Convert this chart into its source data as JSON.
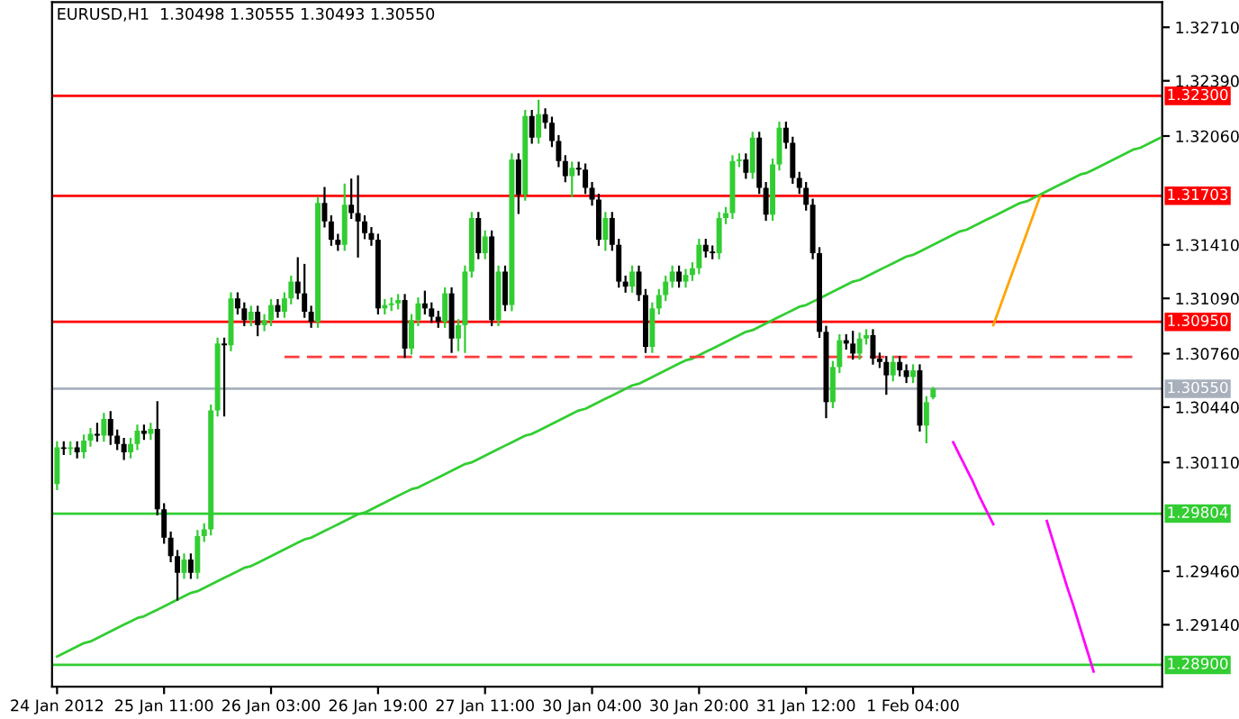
{
  "chart_data": {
    "type": "candlestick",
    "title": "EURUSD,H1  1.30498 1.30555 1.30493 1.30550",
    "categories": [
      "24 Jan 2012",
      null,
      null,
      null,
      null,
      null,
      null,
      null,
      null,
      null,
      null,
      null,
      null,
      null,
      null,
      null,
      "25 Jan 11:00",
      null,
      null,
      null,
      null,
      null,
      null,
      null,
      null,
      null,
      null,
      null,
      null,
      null,
      null,
      null,
      "26 Jan 03:00",
      null,
      null,
      null,
      null,
      null,
      null,
      null,
      null,
      null,
      null,
      null,
      null,
      null,
      null,
      null,
      "26 Jan 19:00",
      null,
      null,
      null,
      null,
      null,
      null,
      null,
      null,
      null,
      null,
      null,
      null,
      null,
      null,
      null,
      "27 Jan 11:00",
      null,
      null,
      null,
      null,
      null,
      null,
      null,
      null,
      null,
      null,
      null,
      null,
      null,
      null,
      null,
      "30 Jan 04:00",
      null,
      null,
      null,
      null,
      null,
      null,
      null,
      null,
      null,
      null,
      null,
      null,
      null,
      null,
      null,
      "30 Jan 20:00",
      null,
      null,
      null,
      null,
      null,
      null,
      null,
      null,
      null,
      null,
      null,
      null,
      null,
      null,
      null,
      "31 Jan 12:00",
      null,
      null,
      null,
      null,
      null,
      null,
      null,
      null,
      null,
      null,
      null,
      null,
      null,
      null,
      null,
      "1 Feb 04:00",
      null,
      null,
      null,
      null,
      null,
      null,
      null,
      null,
      null,
      null,
      null,
      null,
      null,
      null,
      null,
      null,
      null,
      null,
      null,
      null,
      null,
      null,
      null,
      null,
      null,
      null,
      null,
      null,
      null,
      null,
      null,
      null,
      null,
      null,
      null,
      null,
      null
    ],
    "ylim": [
      1.2877,
      1.3286
    ],
    "yticks": [
      {
        "value": 1.3271,
        "label": "1.32710"
      },
      {
        "value": 1.3239,
        "label": "1.32390"
      },
      {
        "value": 1.3206,
        "label": "1.32060"
      },
      {
        "value": 1.3141,
        "label": "1.31410"
      },
      {
        "value": 1.3109,
        "label": "1.31090"
      },
      {
        "value": 1.3076,
        "label": "1.30760"
      },
      {
        "value": 1.3044,
        "label": "1.30440"
      },
      {
        "value": 1.3011,
        "label": "1.30110"
      },
      {
        "value": 1.2946,
        "label": "1.29460"
      },
      {
        "value": 1.2914,
        "label": "1.29140"
      }
    ],
    "ohlc": [
      [
        1.2998,
        1.3023,
        1.2995,
        1.302
      ],
      [
        1.302,
        1.3023,
        1.3016,
        1.3019
      ],
      [
        1.3019,
        1.3023,
        1.3016,
        1.302
      ],
      [
        1.302,
        1.3023,
        1.3014,
        1.3017
      ],
      [
        1.3017,
        1.3027,
        1.3014,
        1.3024
      ],
      [
        1.3024,
        1.3031,
        1.3021,
        1.3028
      ],
      [
        1.3028,
        1.3034,
        1.3024,
        1.3027
      ],
      [
        1.3027,
        1.304,
        1.3024,
        1.3037
      ],
      [
        1.3037,
        1.3041,
        1.3022,
        1.3027
      ],
      [
        1.3027,
        1.303,
        1.3019,
        1.3022
      ],
      [
        1.3022,
        1.3025,
        1.3013,
        1.3017
      ],
      [
        1.3017,
        1.3025,
        1.3014,
        1.3022
      ],
      [
        1.3022,
        1.3033,
        1.3019,
        1.303
      ],
      [
        1.303,
        1.3033,
        1.3025,
        1.3028
      ],
      [
        1.3028,
        1.3034,
        1.3025,
        1.3031
      ],
      [
        1.3031,
        1.3047,
        1.298,
        1.2983
      ],
      [
        1.2983,
        1.2986,
        1.2963,
        1.2966
      ],
      [
        1.2966,
        1.2969,
        1.2952,
        1.2955
      ],
      [
        1.2955,
        1.2958,
        1.2929,
        1.2945
      ],
      [
        1.2945,
        1.2956,
        1.2942,
        1.2953
      ],
      [
        1.2953,
        1.2956,
        1.2942,
        1.2945
      ],
      [
        1.2945,
        1.297,
        1.2942,
        1.2967
      ],
      [
        1.2967,
        1.2974,
        1.2964,
        1.2971
      ],
      [
        1.2971,
        1.3045,
        1.2968,
        1.3042
      ],
      [
        1.3042,
        1.3085,
        1.3039,
        1.3082
      ],
      [
        1.3082,
        1.3085,
        1.3039,
        1.3081
      ],
      [
        1.3081,
        1.3112,
        1.3078,
        1.3109
      ],
      [
        1.3109,
        1.3112,
        1.31,
        1.3103
      ],
      [
        1.3103,
        1.3106,
        1.3093,
        1.3096
      ],
      [
        1.3096,
        1.3104,
        1.3093,
        1.3101
      ],
      [
        1.3101,
        1.3104,
        1.3087,
        1.3093
      ],
      [
        1.3093,
        1.3099,
        1.309,
        1.3096
      ],
      [
        1.3096,
        1.3108,
        1.3093,
        1.3105
      ],
      [
        1.3105,
        1.3108,
        1.3098,
        1.3101
      ],
      [
        1.3101,
        1.3112,
        1.3098,
        1.3109
      ],
      [
        1.3109,
        1.3122,
        1.3106,
        1.3119
      ],
      [
        1.3119,
        1.3133,
        1.3109,
        1.3112
      ],
      [
        1.3112,
        1.3129,
        1.3098,
        1.3101
      ],
      [
        1.3101,
        1.3104,
        1.3092,
        1.3095
      ],
      [
        1.3095,
        1.3169,
        1.3092,
        1.3166
      ],
      [
        1.3166,
        1.3175,
        1.3152,
        1.3155
      ],
      [
        1.3155,
        1.3158,
        1.3141,
        1.3144
      ],
      [
        1.3144,
        1.3147,
        1.3138,
        1.3141
      ],
      [
        1.3141,
        1.3177,
        1.3138,
        1.3165
      ],
      [
        1.3165,
        1.318,
        1.3157,
        1.316
      ],
      [
        1.316,
        1.3182,
        1.3134,
        1.3155
      ],
      [
        1.3155,
        1.3158,
        1.3145,
        1.3148
      ],
      [
        1.3148,
        1.3151,
        1.3141,
        1.3144
      ],
      [
        1.3144,
        1.3147,
        1.31,
        1.3103
      ],
      [
        1.3103,
        1.3108,
        1.31,
        1.3105
      ],
      [
        1.3105,
        1.3109,
        1.3102,
        1.3106
      ],
      [
        1.3106,
        1.3111,
        1.3103,
        1.3108
      ],
      [
        1.3108,
        1.3111,
        1.3074,
        1.3079
      ],
      [
        1.3079,
        1.3099,
        1.3076,
        1.3096
      ],
      [
        1.3096,
        1.3109,
        1.3093,
        1.3106
      ],
      [
        1.3106,
        1.3113,
        1.31,
        1.3103
      ],
      [
        1.3103,
        1.3106,
        1.3095,
        1.3098
      ],
      [
        1.3098,
        1.3101,
        1.3092,
        1.3095
      ],
      [
        1.3095,
        1.3115,
        1.3092,
        1.3112
      ],
      [
        1.3112,
        1.3115,
        1.3077,
        1.3085
      ],
      [
        1.3085,
        1.3096,
        1.3078,
        1.3093
      ],
      [
        1.3093,
        1.3128,
        1.3077,
        1.3125
      ],
      [
        1.3125,
        1.316,
        1.3122,
        1.3157
      ],
      [
        1.3157,
        1.316,
        1.3133,
        1.3136
      ],
      [
        1.3136,
        1.3149,
        1.3133,
        1.3146
      ],
      [
        1.3146,
        1.3149,
        1.3093,
        1.3096
      ],
      [
        1.3096,
        1.3128,
        1.3093,
        1.3125
      ],
      [
        1.3125,
        1.3128,
        1.3102,
        1.3105
      ],
      [
        1.3105,
        1.3195,
        1.3102,
        1.3192
      ],
      [
        1.3192,
        1.3195,
        1.316,
        1.3171
      ],
      [
        1.3171,
        1.3221,
        1.3168,
        1.3218
      ],
      [
        1.3218,
        1.3221,
        1.3202,
        1.3205
      ],
      [
        1.3205,
        1.3227,
        1.3202,
        1.3219
      ],
      [
        1.3219,
        1.3222,
        1.3211,
        1.3214
      ],
      [
        1.3214,
        1.3217,
        1.32,
        1.3203
      ],
      [
        1.3203,
        1.3206,
        1.3188,
        1.3191
      ],
      [
        1.3191,
        1.3194,
        1.3179,
        1.3182
      ],
      [
        1.3182,
        1.319,
        1.317,
        1.3187
      ],
      [
        1.3187,
        1.319,
        1.3183,
        1.3186
      ],
      [
        1.3186,
        1.3189,
        1.3172,
        1.3175
      ],
      [
        1.3175,
        1.3178,
        1.3165,
        1.3168
      ],
      [
        1.3168,
        1.3171,
        1.3141,
        1.3144
      ],
      [
        1.3144,
        1.316,
        1.3138,
        1.3157
      ],
      [
        1.3157,
        1.316,
        1.3138,
        1.3141
      ],
      [
        1.3141,
        1.3144,
        1.3116,
        1.3119
      ],
      [
        1.3119,
        1.3122,
        1.3113,
        1.3116
      ],
      [
        1.3116,
        1.3128,
        1.3113,
        1.3125
      ],
      [
        1.3125,
        1.3128,
        1.3108,
        1.3111
      ],
      [
        1.3111,
        1.3114,
        1.3077,
        1.308
      ],
      [
        1.308,
        1.3106,
        1.3077,
        1.3103
      ],
      [
        1.3103,
        1.3114,
        1.31,
        1.3111
      ],
      [
        1.3111,
        1.3122,
        1.3108,
        1.3119
      ],
      [
        1.3119,
        1.3128,
        1.3116,
        1.3125
      ],
      [
        1.3125,
        1.3128,
        1.3116,
        1.3119
      ],
      [
        1.3119,
        1.3126,
        1.3116,
        1.3123
      ],
      [
        1.3123,
        1.313,
        1.312,
        1.3127
      ],
      [
        1.3127,
        1.3144,
        1.3124,
        1.3141
      ],
      [
        1.3141,
        1.3144,
        1.3134,
        1.3137
      ],
      [
        1.3137,
        1.314,
        1.3133,
        1.3136
      ],
      [
        1.3136,
        1.316,
        1.3133,
        1.3157
      ],
      [
        1.3157,
        1.3163,
        1.3154,
        1.316
      ],
      [
        1.316,
        1.3194,
        1.3157,
        1.3191
      ],
      [
        1.3191,
        1.3195,
        1.3188,
        1.3192
      ],
      [
        1.3192,
        1.3195,
        1.3181,
        1.3184
      ],
      [
        1.3184,
        1.3208,
        1.3181,
        1.3205
      ],
      [
        1.3205,
        1.3208,
        1.3172,
        1.3175
      ],
      [
        1.3175,
        1.3178,
        1.3156,
        1.3159
      ],
      [
        1.3159,
        1.3192,
        1.3156,
        1.3189
      ],
      [
        1.3189,
        1.3214,
        1.3186,
        1.3211
      ],
      [
        1.3211,
        1.3214,
        1.3199,
        1.3202
      ],
      [
        1.3202,
        1.3205,
        1.3178,
        1.3181
      ],
      [
        1.3181,
        1.3184,
        1.3172,
        1.3175
      ],
      [
        1.3175,
        1.3178,
        1.3162,
        1.3165
      ],
      [
        1.3165,
        1.3168,
        1.3133,
        1.3136
      ],
      [
        1.3136,
        1.3139,
        1.3086,
        1.3089
      ],
      [
        1.3089,
        1.3092,
        1.3038,
        1.3047
      ],
      [
        1.3047,
        1.3071,
        1.3044,
        1.3068
      ],
      [
        1.3068,
        1.3087,
        1.3065,
        1.3084
      ],
      [
        1.3084,
        1.3087,
        1.3079,
        1.3082
      ],
      [
        1.3082,
        1.3089,
        1.3073,
        1.3076
      ],
      [
        1.3076,
        1.3088,
        1.3073,
        1.3085
      ],
      [
        1.3085,
        1.309,
        1.3082,
        1.3087
      ],
      [
        1.3087,
        1.309,
        1.307,
        1.3073
      ],
      [
        1.3073,
        1.3076,
        1.3068,
        1.3071
      ],
      [
        1.3071,
        1.3074,
        1.3052,
        1.3063
      ],
      [
        1.3063,
        1.3074,
        1.306,
        1.3071
      ],
      [
        1.3071,
        1.3074,
        1.3063,
        1.3066
      ],
      [
        1.3066,
        1.3069,
        1.3059,
        1.3062
      ],
      [
        1.3062,
        1.3069,
        1.3059,
        1.3066
      ],
      [
        1.3066,
        1.3069,
        1.303,
        1.3033
      ],
      [
        1.3033,
        1.305,
        1.3023,
        1.3047
      ],
      [
        1.30498,
        1.30555,
        1.30493,
        1.3055
      ],
      null,
      null,
      null,
      null,
      null,
      null,
      null,
      null,
      null,
      null,
      null,
      null,
      null,
      null,
      null,
      null,
      null,
      null,
      null,
      null,
      null,
      null,
      null,
      null,
      null,
      null,
      null,
      null,
      null,
      null,
      null,
      null,
      null,
      null
    ],
    "colors": [
      "#32cd32",
      "#000000",
      "#32cd32",
      "#000000",
      "#32cd32",
      "#32cd32",
      "#000000",
      "#32cd32",
      "#000000",
      "#000000",
      "#000000",
      "#32cd32",
      "#32cd32",
      "#000000",
      "#32cd32",
      "#000000",
      "#000000",
      "#000000",
      "#000000",
      "#32cd32",
      "#000000",
      "#32cd32",
      "#32cd32",
      "#32cd32",
      "#32cd32",
      "#000000",
      "#32cd32",
      "#000000",
      "#000000",
      "#32cd32",
      "#000000",
      "#32cd32",
      "#32cd32",
      "#000000",
      "#32cd32",
      "#32cd32",
      "#000000",
      "#000000",
      "#000000",
      "#32cd32",
      "#000000",
      "#000000",
      "#000000",
      "#32cd32",
      "#000000",
      "#000000",
      "#000000",
      "#000000",
      "#000000",
      "#32cd32",
      "#32cd32",
      "#32cd32",
      "#000000",
      "#32cd32",
      "#32cd32",
      "#000000",
      "#000000",
      "#000000",
      "#32cd32",
      "#000000",
      "#32cd32",
      "#32cd32",
      "#32cd32",
      "#000000",
      "#32cd32",
      "#000000",
      "#32cd32",
      "#000000",
      "#32cd32",
      "#000000",
      "#32cd32",
      "#000000",
      "#32cd32",
      "#000000",
      "#000000",
      "#000000",
      "#000000",
      "#32cd32",
      "#000000",
      "#000000",
      "#000000",
      "#000000",
      "#32cd32",
      "#000000",
      "#000000",
      "#000000",
      "#32cd32",
      "#000000",
      "#000000",
      "#32cd32",
      "#32cd32",
      "#32cd32",
      "#32cd32",
      "#000000",
      "#32cd32",
      "#32cd32",
      "#32cd32",
      "#000000",
      "#000000",
      "#32cd32",
      "#32cd32",
      "#32cd32",
      "#32cd32",
      "#000000",
      "#32cd32",
      "#000000",
      "#000000",
      "#32cd32",
      "#32cd32",
      "#000000",
      "#000000",
      "#000000",
      "#000000",
      "#000000",
      "#000000",
      "#000000",
      "#32cd32",
      "#32cd32",
      "#000000",
      "#000000",
      "#32cd32",
      "#32cd32",
      "#000000",
      "#000000",
      "#000000",
      "#32cd32",
      "#000000",
      "#000000",
      "#32cd32",
      "#000000",
      "#32cd32",
      "#32cd32",
      null,
      null,
      null,
      null,
      null,
      null,
      null,
      null,
      null,
      null,
      null,
      null,
      null,
      null,
      null,
      null,
      null,
      null,
      null,
      null,
      null,
      null,
      null,
      null,
      null,
      null,
      null,
      null,
      null,
      null,
      null,
      null,
      null,
      null
    ],
    "series": [
      {
        "type": "line",
        "color": "#32cd32",
        "values": [
          1.2895,
          1.2897,
          1.2899,
          1.2901,
          1.2903,
          1.2904,
          1.2906,
          1.2908,
          1.291,
          1.2912,
          1.2914,
          1.2916,
          1.2918,
          1.2919,
          1.2921,
          1.2923,
          1.2925,
          1.2927,
          1.2929,
          1.2931,
          1.2933,
          1.2934,
          1.2936,
          1.2938,
          1.294,
          1.2942,
          1.2944,
          1.2946,
          1.2948,
          1.2949,
          1.2951,
          1.2953,
          1.2955,
          1.2957,
          1.2959,
          1.2961,
          1.2963,
          1.2965,
          1.2966,
          1.2968,
          1.297,
          1.2972,
          1.2974,
          1.2976,
          1.2978,
          1.298,
          1.2981,
          1.2983,
          1.2985,
          1.2987,
          1.2989,
          1.2991,
          1.2993,
          1.2995,
          1.2996,
          1.2998,
          1.3,
          1.3002,
          1.3004,
          1.3006,
          1.3008,
          1.301,
          1.3011,
          1.3013,
          1.3015,
          1.3017,
          1.3019,
          1.3021,
          1.3023,
          1.3025,
          1.3027,
          1.3028,
          1.303,
          1.3032,
          1.3034,
          1.3036,
          1.3038,
          1.304,
          1.3042,
          1.3043,
          1.3045,
          1.3047,
          1.3049,
          1.3051,
          1.3053,
          1.3055,
          1.3057,
          1.3058,
          1.306,
          1.3062,
          1.3064,
          1.3066,
          1.3068,
          1.307,
          1.3072,
          1.3073,
          1.3075,
          1.3077,
          1.3079,
          1.3081,
          1.3083,
          1.3085,
          1.3087,
          1.3089,
          1.309,
          1.3092,
          1.3094,
          1.3096,
          1.3098,
          1.31,
          1.3102,
          1.3104,
          1.3105,
          1.3107,
          1.3109,
          1.3111,
          1.3113,
          1.3115,
          1.3117,
          1.3119,
          1.312,
          1.3122,
          1.3124,
          1.3126,
          1.3128,
          1.313,
          1.3132,
          1.3134,
          1.3135,
          1.3137,
          1.3139,
          1.3141,
          1.3143,
          1.3145,
          1.3147,
          1.3149,
          1.315,
          1.3152,
          1.3154,
          1.3156,
          1.3158,
          1.316,
          1.3162,
          1.3164,
          1.3166,
          1.3167,
          1.3169,
          1.3171,
          1.3173,
          1.3175,
          1.3177,
          1.3179,
          1.3181,
          1.3183,
          1.3184,
          1.3186,
          1.3188,
          1.319,
          1.3192,
          1.3194,
          1.3196,
          1.3198,
          1.3199,
          1.3201,
          1.3203,
          1.3205
        ]
      },
      {
        "type": "line",
        "color": "#ff3c3c",
        "line_style": "dashed",
        "values": [
          null,
          null,
          null,
          null,
          null,
          null,
          null,
          null,
          null,
          null,
          null,
          null,
          null,
          null,
          null,
          null,
          null,
          null,
          null,
          null,
          null,
          null,
          null,
          null,
          null,
          null,
          null,
          null,
          null,
          null,
          null,
          null,
          null,
          null,
          1.3074,
          1.3074,
          1.3074,
          1.3074,
          1.3074,
          1.3074,
          1.3074,
          1.3074,
          1.3074,
          1.3074,
          1.3074,
          1.3074,
          1.3074,
          1.3074,
          1.3074,
          1.3074,
          1.3074,
          1.3074,
          1.3074,
          1.3074,
          1.3074,
          1.3074,
          1.3074,
          1.3074,
          1.3074,
          1.3074,
          1.3074,
          1.3074,
          1.3074,
          1.3074,
          1.3074,
          1.3074,
          1.3074,
          1.3074,
          1.3074,
          1.3074,
          1.3074,
          1.3074,
          1.3074,
          1.3074,
          1.3074,
          1.3074,
          1.3074,
          1.3074,
          1.3074,
          1.3074,
          1.3074,
          1.3074,
          1.3074,
          1.3074,
          1.3074,
          1.3074,
          1.3074,
          1.3074,
          1.3074,
          1.3074,
          1.3074,
          1.3074,
          1.3074,
          1.3074,
          1.3074,
          1.3074,
          1.3074,
          1.3074,
          1.3074,
          1.3074,
          1.3074,
          1.3074,
          1.3074,
          1.3074,
          1.3074,
          1.3074,
          1.3074,
          1.3074,
          1.3074,
          1.3074,
          1.3074,
          1.3074,
          1.3074,
          1.3074,
          1.3074,
          1.3074,
          1.3074,
          1.3074,
          1.3074,
          1.3074,
          1.3074,
          1.3074,
          1.3074,
          1.3074,
          1.3074,
          1.3074,
          1.3074,
          1.3074,
          1.3074,
          1.3074,
          1.3074,
          1.3074,
          1.3074,
          1.3074,
          1.3074,
          1.3074,
          1.3074,
          1.3074,
          1.3074,
          1.3074,
          1.3074,
          1.3074,
          1.3074,
          1.3074,
          1.3074,
          1.3074,
          1.3074,
          1.3074,
          1.3074,
          1.3074,
          1.3074,
          1.3074,
          1.3074,
          1.3074,
          1.3074,
          1.3074,
          1.3074,
          1.3074,
          1.3074,
          1.3074,
          1.3074,
          1.3074,
          null,
          null,
          null,
          null
        ]
      },
      {
        "type": "line",
        "color": "#ffa500",
        "values": [
          null,
          null,
          null,
          null,
          null,
          null,
          null,
          null,
          null,
          null,
          null,
          null,
          null,
          null,
          null,
          null,
          null,
          null,
          null,
          null,
          null,
          null,
          null,
          null,
          null,
          null,
          null,
          null,
          null,
          null,
          null,
          null,
          null,
          null,
          null,
          null,
          null,
          null,
          null,
          null,
          null,
          null,
          null,
          null,
          null,
          null,
          null,
          null,
          null,
          null,
          null,
          null,
          null,
          null,
          null,
          null,
          null,
          null,
          null,
          null,
          null,
          null,
          null,
          null,
          null,
          null,
          null,
          null,
          null,
          null,
          null,
          null,
          null,
          null,
          null,
          null,
          null,
          null,
          null,
          null,
          null,
          null,
          null,
          null,
          null,
          null,
          null,
          null,
          null,
          null,
          null,
          null,
          null,
          null,
          null,
          null,
          null,
          null,
          null,
          null,
          null,
          null,
          null,
          null,
          null,
          null,
          null,
          null,
          null,
          null,
          null,
          null,
          null,
          null,
          null,
          null,
          null,
          null,
          null,
          null,
          null,
          null,
          null,
          null,
          null,
          null,
          null,
          null,
          null,
          null,
          null,
          null,
          null,
          null,
          null,
          null,
          null,
          null,
          null,
          null,
          1.3093,
          1.3104,
          1.3115,
          1.3126,
          1.3137,
          1.3148,
          1.3159,
          1.317,
          null,
          null,
          null,
          null,
          null,
          null,
          null,
          null,
          null,
          null,
          null,
          null,
          null,
          null,
          null,
          null,
          null,
          null
        ]
      },
      {
        "type": "line",
        "color": "#ff00ff",
        "values": [
          null,
          null,
          null,
          null,
          null,
          null,
          null,
          null,
          null,
          null,
          null,
          null,
          null,
          null,
          null,
          null,
          null,
          null,
          null,
          null,
          null,
          null,
          null,
          null,
          null,
          null,
          null,
          null,
          null,
          null,
          null,
          null,
          null,
          null,
          null,
          null,
          null,
          null,
          null,
          null,
          null,
          null,
          null,
          null,
          null,
          null,
          null,
          null,
          null,
          null,
          null,
          null,
          null,
          null,
          null,
          null,
          null,
          null,
          null,
          null,
          null,
          null,
          null,
          null,
          null,
          null,
          null,
          null,
          null,
          null,
          null,
          null,
          null,
          null,
          null,
          null,
          null,
          null,
          null,
          null,
          null,
          null,
          null,
          null,
          null,
          null,
          null,
          null,
          null,
          null,
          null,
          null,
          null,
          null,
          null,
          null,
          null,
          null,
          null,
          null,
          null,
          null,
          null,
          null,
          null,
          null,
          null,
          null,
          null,
          null,
          null,
          null,
          null,
          null,
          null,
          null,
          null,
          null,
          null,
          null,
          null,
          null,
          null,
          null,
          null,
          null,
          null,
          null,
          null,
          null,
          null,
          null,
          null,
          null,
          1.3023,
          1.3015,
          1.3007,
          1.2999,
          1.299,
          1.2982,
          1.2974,
          null,
          null,
          null,
          null,
          null,
          null,
          null,
          null,
          null,
          null,
          null,
          null,
          null,
          null,
          null,
          null,
          null,
          null,
          null,
          null,
          null,
          null,
          null,
          null,
          null
        ]
      },
      {
        "type": "line",
        "color": "#ff00ff",
        "values": [
          null,
          null,
          null,
          null,
          null,
          null,
          null,
          null,
          null,
          null,
          null,
          null,
          null,
          null,
          null,
          null,
          null,
          null,
          null,
          null,
          null,
          null,
          null,
          null,
          null,
          null,
          null,
          null,
          null,
          null,
          null,
          null,
          null,
          null,
          null,
          null,
          null,
          null,
          null,
          null,
          null,
          null,
          null,
          null,
          null,
          null,
          null,
          null,
          null,
          null,
          null,
          null,
          null,
          null,
          null,
          null,
          null,
          null,
          null,
          null,
          null,
          null,
          null,
          null,
          null,
          null,
          null,
          null,
          null,
          null,
          null,
          null,
          null,
          null,
          null,
          null,
          null,
          null,
          null,
          null,
          null,
          null,
          null,
          null,
          null,
          null,
          null,
          null,
          null,
          null,
          null,
          null,
          null,
          null,
          null,
          null,
          null,
          null,
          null,
          null,
          null,
          null,
          null,
          null,
          null,
          null,
          null,
          null,
          null,
          null,
          null,
          null,
          null,
          null,
          null,
          null,
          null,
          null,
          null,
          null,
          null,
          null,
          null,
          null,
          null,
          null,
          null,
          null,
          null,
          null,
          null,
          null,
          null,
          null,
          null,
          null,
          null,
          null,
          null,
          null,
          null,
          null,
          null,
          null,
          null,
          null,
          null,
          null,
          1.2976,
          1.2963,
          1.295,
          1.2937,
          1.2925,
          1.2912,
          1.2899,
          1.2886,
          null,
          null,
          null,
          null,
          null,
          null,
          null,
          null,
          null,
          null
        ]
      }
    ],
    "ref_lines": [
      {
        "axis": "y",
        "value": 1.323,
        "label": "1.32300",
        "color": "#ff0000"
      },
      {
        "axis": "y",
        "value": 1.31703,
        "label": "1.31703",
        "color": "#ff0000"
      },
      {
        "axis": "y",
        "value": 1.3095,
        "label": "1.30950",
        "color": "#ff0000"
      },
      {
        "axis": "y",
        "value": 1.3055,
        "label": "1.30550",
        "color": "#a8b0bc"
      },
      {
        "axis": "y",
        "value": 1.29804,
        "label": "1.29804",
        "color": "#32cd32"
      },
      {
        "axis": "y",
        "value": 1.289,
        "label": "1.28900",
        "color": "#32cd32"
      }
    ]
  }
}
